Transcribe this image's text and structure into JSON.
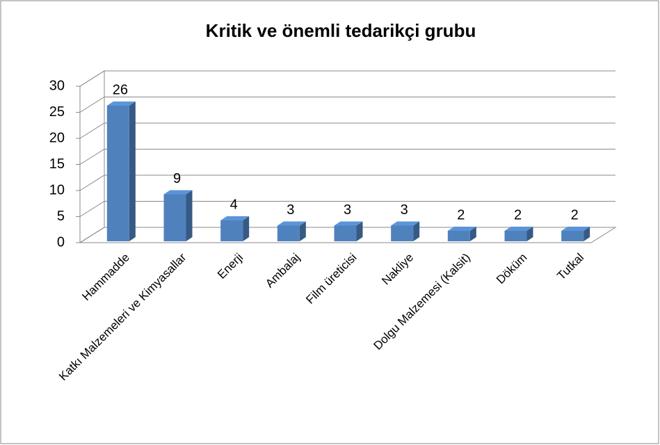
{
  "chart_data": {
    "type": "bar",
    "title": "Kritik ve önemli tedarikçi grubu",
    "categories": [
      "Hammadde",
      "Katkı Malzemeleri ve Kimyasallar",
      "Enerji",
      "Ambalaj",
      "Film üreticisi",
      "Nakliye",
      "Dolgu Malzemesi (Kalsit)",
      "Döküm",
      "Tutkal"
    ],
    "values": [
      26,
      9,
      4,
      3,
      3,
      3,
      2,
      2,
      2
    ],
    "color": "#4f81bd",
    "ylim": [
      0,
      30
    ],
    "yticks": [
      0,
      5,
      10,
      15,
      20,
      25,
      30
    ],
    "grid": true
  }
}
